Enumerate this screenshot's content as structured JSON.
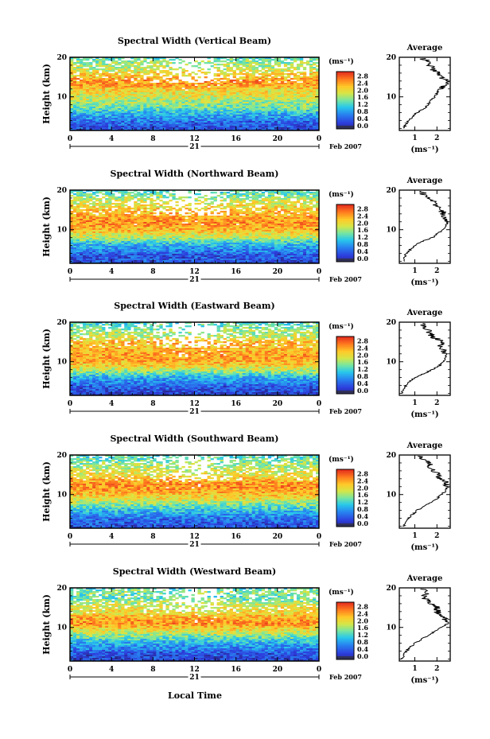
{
  "figure": {
    "x_axis_title": "Local Time",
    "height_axis_label": "Height (km)",
    "colorbar_unit": "(ms⁻¹)",
    "average_title": "Average",
    "average_unit": "(ms⁻¹)",
    "day_label": "21",
    "month_label": "Feb 2007"
  },
  "chart_data": [
    {
      "type": "heatmap",
      "title": "Spectral Width (Vertical Beam)",
      "xlabel": "",
      "ylabel": "Height (km)",
      "xlim": [
        0,
        24
      ],
      "ylim": [
        1.5,
        20
      ],
      "x_ticks": [
        "0",
        "4",
        "8",
        "12",
        "16",
        "20",
        "0"
      ],
      "y_ticks": [
        "10",
        "20"
      ],
      "colorbar": {
        "label": "(ms⁻¹)",
        "range": [
          0,
          3
        ],
        "ticks": [
          "0.0",
          "0.4",
          "0.8",
          "1.2",
          "1.6",
          "2.0",
          "2.4",
          "2.8"
        ]
      },
      "average_profile": {
        "title": "Average",
        "xlabel": "(ms⁻¹)",
        "xlim": [
          0.3,
          2.6
        ],
        "x_ticks": [
          "1",
          "2"
        ],
        "height": [
          2,
          4,
          5,
          6,
          7,
          8,
          9,
          10,
          11,
          12,
          13,
          14,
          15,
          16,
          17,
          18,
          19,
          19.8
        ],
        "width": [
          0.5,
          0.7,
          0.9,
          1.1,
          1.4,
          1.6,
          1.7,
          1.9,
          2.0,
          2.1,
          2.4,
          2.5,
          2.2,
          2.1,
          1.8,
          1.7,
          1.6,
          1.3
        ]
      }
    },
    {
      "type": "heatmap",
      "title": "Spectral Width (Northward Beam)",
      "xlabel": "",
      "ylabel": "Height (km)",
      "xlim": [
        0,
        24
      ],
      "ylim": [
        1.5,
        20
      ],
      "x_ticks": [
        "0",
        "4",
        "8",
        "12",
        "16",
        "20",
        "0"
      ],
      "y_ticks": [
        "10",
        "20"
      ],
      "colorbar": {
        "label": "(ms⁻¹)",
        "range": [
          0,
          3
        ],
        "ticks": [
          "0.0",
          "0.4",
          "0.8",
          "1.2",
          "1.6",
          "2.0",
          "2.4",
          "2.8"
        ]
      },
      "average_profile": {
        "title": "Average",
        "xlabel": "(ms⁻¹)",
        "xlim": [
          0.3,
          2.6
        ],
        "x_ticks": [
          "1",
          "2"
        ],
        "height": [
          2,
          4,
          5,
          6,
          7,
          8,
          9,
          10,
          11,
          12,
          13,
          14,
          15,
          16,
          17,
          18,
          19,
          19.8
        ],
        "width": [
          0.5,
          0.6,
          0.8,
          1.0,
          1.3,
          1.8,
          2.0,
          2.3,
          2.4,
          2.5,
          2.4,
          2.3,
          2.2,
          2.0,
          1.9,
          1.7,
          1.4,
          1.3
        ]
      }
    },
    {
      "type": "heatmap",
      "title": "Spectral Width (Eastward Beam)",
      "xlabel": "",
      "ylabel": "Height (km)",
      "xlim": [
        0,
        24
      ],
      "ylim": [
        1.5,
        20
      ],
      "x_ticks": [
        "0",
        "4",
        "8",
        "12",
        "16",
        "20",
        "0"
      ],
      "y_ticks": [
        "10",
        "20"
      ],
      "colorbar": {
        "label": "(ms⁻¹)",
        "range": [
          0,
          3
        ],
        "ticks": [
          "0.0",
          "0.4",
          "0.8",
          "1.2",
          "1.6",
          "2.0",
          "2.4",
          "2.8"
        ]
      },
      "average_profile": {
        "title": "Average",
        "xlabel": "(ms⁻¹)",
        "xlim": [
          0.3,
          2.6
        ],
        "x_ticks": [
          "1",
          "2"
        ],
        "height": [
          2,
          4,
          5,
          6,
          7,
          8,
          9,
          10,
          11,
          12,
          13,
          14,
          15,
          16,
          17,
          18,
          19,
          19.8
        ],
        "width": [
          0.4,
          0.6,
          0.8,
          1.0,
          1.4,
          1.8,
          2.1,
          2.3,
          2.4,
          2.4,
          2.3,
          2.2,
          2.3,
          1.9,
          1.7,
          1.6,
          1.4,
          1.3
        ]
      }
    },
    {
      "type": "heatmap",
      "title": "Spectral Width (Southward Beam)",
      "xlabel": "",
      "ylabel": "Height (km)",
      "xlim": [
        0,
        24
      ],
      "ylim": [
        1.5,
        20
      ],
      "x_ticks": [
        "0",
        "4",
        "8",
        "12",
        "16",
        "20",
        "0"
      ],
      "y_ticks": [
        "10",
        "20"
      ],
      "colorbar": {
        "label": "(ms⁻¹)",
        "range": [
          0,
          3
        ],
        "ticks": [
          "0.0",
          "0.4",
          "0.8",
          "1.2",
          "1.6",
          "2.0",
          "2.4",
          "2.8"
        ]
      },
      "average_profile": {
        "title": "Average",
        "xlabel": "(ms⁻¹)",
        "xlim": [
          0.3,
          2.6
        ],
        "x_ticks": [
          "1",
          "2"
        ],
        "height": [
          2,
          4,
          5,
          6,
          7,
          8,
          9,
          10,
          11,
          12,
          13,
          14,
          15,
          16,
          17,
          18,
          19,
          19.8
        ],
        "width": [
          0.5,
          0.7,
          0.9,
          1.1,
          1.4,
          1.7,
          2.0,
          2.2,
          2.4,
          2.5,
          2.4,
          2.2,
          2.0,
          1.9,
          1.7,
          1.6,
          1.4,
          1.3
        ]
      }
    },
    {
      "type": "heatmap",
      "title": "Spectral Width (Westward Beam)",
      "xlabel": "Local Time",
      "ylabel": "Height (km)",
      "xlim": [
        0,
        24
      ],
      "ylim": [
        1.5,
        20
      ],
      "x_ticks": [
        "0",
        "4",
        "8",
        "12",
        "16",
        "20",
        "0"
      ],
      "y_ticks": [
        "10",
        "20"
      ],
      "colorbar": {
        "label": "(ms⁻¹)",
        "range": [
          0,
          3
        ],
        "ticks": [
          "0.0",
          "0.4",
          "0.8",
          "1.2",
          "1.6",
          "2.0",
          "2.4",
          "2.8"
        ]
      },
      "average_profile": {
        "title": "Average",
        "xlabel": "(ms⁻¹)",
        "xlim": [
          0.3,
          2.6
        ],
        "x_ticks": [
          "1",
          "2"
        ],
        "height": [
          2,
          4,
          5,
          6,
          7,
          8,
          9,
          10,
          11,
          12,
          13,
          14,
          15,
          16,
          17,
          18,
          19,
          19.8
        ],
        "width": [
          0.4,
          0.6,
          0.8,
          1.0,
          1.3,
          1.6,
          1.9,
          2.2,
          2.5,
          2.4,
          2.2,
          2.0,
          2.0,
          1.8,
          1.5,
          1.4,
          1.6,
          1.3
        ]
      }
    }
  ]
}
